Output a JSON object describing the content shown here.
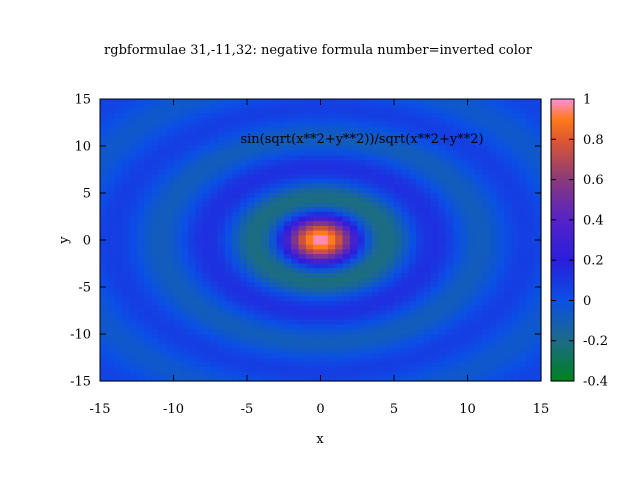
{
  "chart_data": {
    "type": "heatmap",
    "title": "rgbformulae 31,-11,32: negative formula number=inverted color",
    "xlabel": "x",
    "ylabel": "y",
    "annotation": "sin(sqrt(x**2+y**2))/sqrt(x**2+y**2)",
    "function": "sin(r)/r, r = sqrt(x^2 + y^2)",
    "xlim": [
      -15,
      15
    ],
    "ylim": [
      -15,
      15
    ],
    "grid_size": [
      60,
      60
    ],
    "xticks": [
      "-15",
      "-10",
      "-5",
      "0",
      "5",
      "10",
      "15"
    ],
    "yticks": [
      "-15",
      "-10",
      "-5",
      "0",
      "5",
      "10",
      "15"
    ],
    "colorbar": {
      "range": [
        -0.4,
        1
      ],
      "ticks": [
        "1",
        "0.8",
        "0.6",
        "0.4",
        "0.2",
        "0",
        "-0.2",
        "-0.4"
      ],
      "colormap_stops": [
        {
          "value": -0.4,
          "color": "#00821e"
        },
        {
          "value": -0.2,
          "color": "#1d6b88"
        },
        {
          "value": 0.0,
          "color": "#0a50e6"
        },
        {
          "value": 0.2,
          "color": "#2a1edc"
        },
        {
          "value": 0.4,
          "color": "#5522c8"
        },
        {
          "value": 0.6,
          "color": "#8a3a7a"
        },
        {
          "value": 0.8,
          "color": "#e05830"
        },
        {
          "value": 0.9,
          "color": "#ff7a1c"
        },
        {
          "value": 1.0,
          "color": "#ff8fd8"
        }
      ]
    }
  }
}
